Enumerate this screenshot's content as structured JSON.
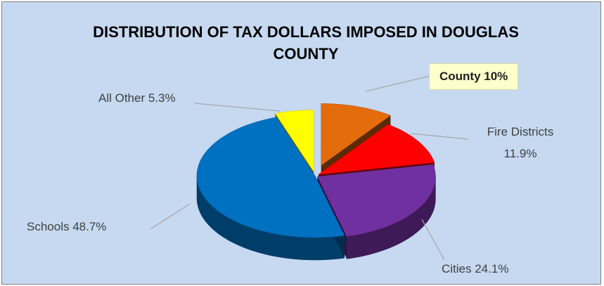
{
  "chart_data": {
    "type": "pie",
    "title": "DISTRIBUTION OF TAX DOLLARS IMPOSED IN DOUGLAS COUNTY",
    "values": [
      10,
      11.9,
      24.1,
      48.7,
      5.3
    ],
    "value_labels": [
      "County 10%",
      "Fire Districts 11.9%",
      "Cities 24.1%",
      "Schools 48.7%",
      "All Other 5.3%"
    ],
    "colors": [
      "#e46c0a",
      "#ff0000",
      "#7030a0",
      "#0070c0",
      "#ffff00"
    ]
  }
}
